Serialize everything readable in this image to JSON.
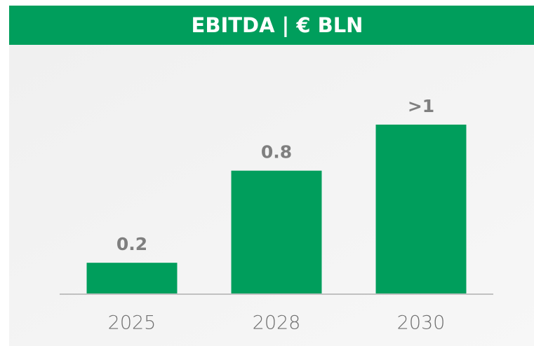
{
  "chart_data": {
    "type": "bar",
    "title": "EBITDA | € BLN",
    "categories": [
      "2025",
      "2028",
      "2030"
    ],
    "values": [
      0.2,
      0.8,
      1.1
    ],
    "value_labels": [
      "0.2",
      "0.8",
      ">1"
    ],
    "color": "#009e5c",
    "ylim": [
      0,
      1.2
    ]
  }
}
